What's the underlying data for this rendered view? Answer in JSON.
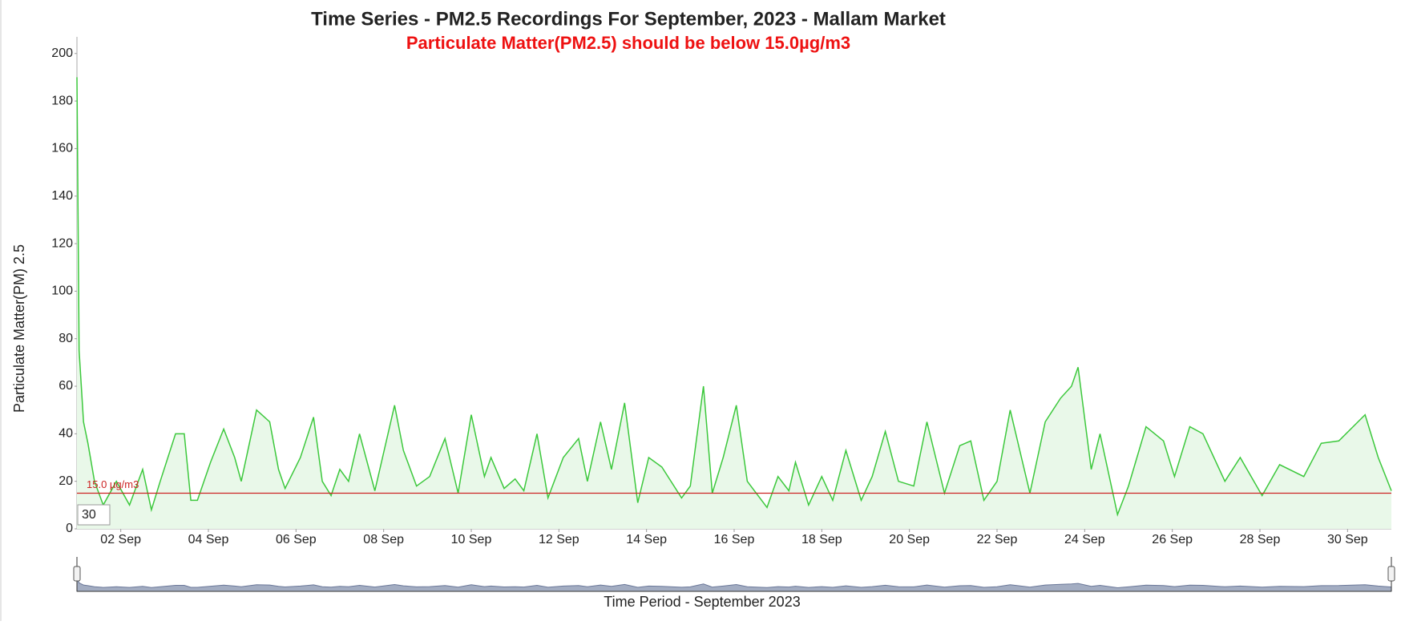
{
  "chart_data": {
    "type": "area",
    "title": "Time Series - PM2.5 Recordings For September, 2023 - Mallam Market",
    "subtitle": "Particulate Matter(PM2.5) should be below 15.0µg/m3",
    "y_label": "Particulate Matter(PM) 2.5",
    "x_label": "Time Period - September 2023",
    "range_input": "30",
    "color": "#3cc83c",
    "fill": "#e9f8e9",
    "threshold": {
      "value": 15,
      "label": "15.0 µg/m3",
      "color": "#cc2222"
    },
    "x": [
      1.0,
      1.05,
      1.15,
      1.25,
      1.4,
      1.6,
      1.9,
      2.2,
      2.5,
      2.7,
      2.9,
      3.25,
      3.45,
      3.6,
      3.75,
      4.05,
      4.35,
      4.6,
      4.75,
      5.1,
      5.4,
      5.6,
      5.75,
      6.1,
      6.4,
      6.6,
      6.8,
      7.0,
      7.2,
      7.45,
      7.8,
      8.25,
      8.45,
      8.75,
      9.05,
      9.4,
      9.7,
      10.0,
      10.3,
      10.45,
      10.75,
      11.0,
      11.2,
      11.5,
      11.75,
      12.1,
      12.45,
      12.65,
      12.95,
      13.2,
      13.5,
      13.8,
      14.05,
      14.35,
      14.8,
      15.0,
      15.3,
      15.5,
      15.75,
      16.05,
      16.3,
      16.75,
      17.0,
      17.25,
      17.4,
      17.7,
      18.0,
      18.25,
      18.55,
      18.9,
      19.15,
      19.45,
      19.75,
      20.1,
      20.4,
      20.8,
      21.15,
      21.4,
      21.7,
      22.0,
      22.3,
      22.75,
      23.1,
      23.45,
      23.7,
      23.85,
      24.15,
      24.35,
      24.75,
      25.0,
      25.4,
      25.8,
      26.05,
      26.4,
      26.7,
      27.2,
      27.55,
      28.05,
      28.45,
      29.0,
      29.4,
      29.8,
      30.4,
      30.7,
      31.0
    ],
    "values": [
      190,
      75,
      45,
      36,
      20,
      10,
      20,
      10,
      25,
      8,
      20,
      40,
      40,
      12,
      12,
      28,
      42,
      30,
      20,
      50,
      45,
      25,
      17,
      30,
      47,
      20,
      14,
      25,
      20,
      40,
      16,
      52,
      33,
      18,
      22,
      38,
      15,
      48,
      22,
      30,
      17,
      21,
      16,
      40,
      13,
      30,
      38,
      20,
      45,
      25,
      53,
      11,
      30,
      26,
      13,
      18,
      60,
      15,
      30,
      52,
      20,
      9,
      22,
      16,
      28,
      10,
      22,
      12,
      33,
      12,
      22,
      41,
      20,
      18,
      45,
      15,
      35,
      37,
      12,
      20,
      50,
      15,
      45,
      55,
      60,
      68,
      25,
      40,
      6,
      18,
      43,
      37,
      22,
      43,
      40,
      20,
      30,
      14,
      27,
      22,
      36,
      37,
      48,
      30,
      16
    ],
    "xlim": [
      1,
      31
    ],
    "xticks": [
      {
        "value": 2,
        "label": "02 Sep"
      },
      {
        "value": 4,
        "label": "04 Sep"
      },
      {
        "value": 6,
        "label": "06 Sep"
      },
      {
        "value": 8,
        "label": "08 Sep"
      },
      {
        "value": 10,
        "label": "10 Sep"
      },
      {
        "value": 12,
        "label": "12 Sep"
      },
      {
        "value": 14,
        "label": "14 Sep"
      },
      {
        "value": 16,
        "label": "16 Sep"
      },
      {
        "value": 18,
        "label": "18 Sep"
      },
      {
        "value": 20,
        "label": "20 Sep"
      },
      {
        "value": 22,
        "label": "22 Sep"
      },
      {
        "value": 24,
        "label": "24 Sep"
      },
      {
        "value": 26,
        "label": "26 Sep"
      },
      {
        "value": 28,
        "label": "28 Sep"
      },
      {
        "value": 30,
        "label": "30 Sep"
      }
    ],
    "ylim": [
      0,
      207
    ],
    "yticks": [
      0,
      20,
      40,
      60,
      80,
      100,
      120,
      140,
      160,
      180,
      200
    ]
  }
}
